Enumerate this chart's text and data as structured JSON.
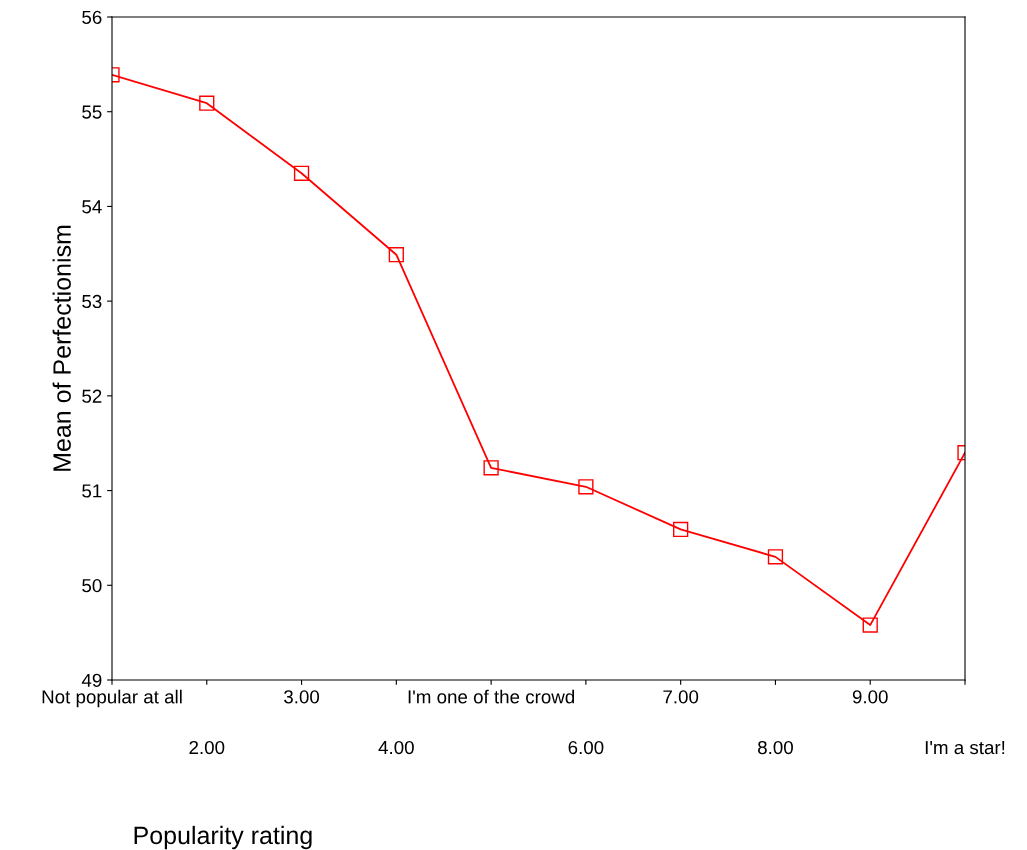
{
  "chart_data": {
    "type": "line",
    "xlabel": "Popularity rating",
    "ylabel": "Mean of Perfectionism",
    "categories": [
      "Not popular at all",
      "2.00",
      "3.00",
      "4.00",
      "I'm one of the crowd",
      "6.00",
      "7.00",
      "8.00",
      "9.00",
      "I'm a star!"
    ],
    "series": [
      {
        "color": "#ff0000",
        "values": [
          55.39,
          55.09,
          54.35,
          53.49,
          51.24,
          51.04,
          50.59,
          50.3,
          49.58,
          51.4
        ]
      }
    ],
    "ylim": [
      49,
      56
    ],
    "yticks": [
      49,
      50,
      51,
      52,
      53,
      54,
      55,
      56
    ],
    "grid": false,
    "legend": false,
    "marker": "square",
    "line_style": "solid"
  }
}
